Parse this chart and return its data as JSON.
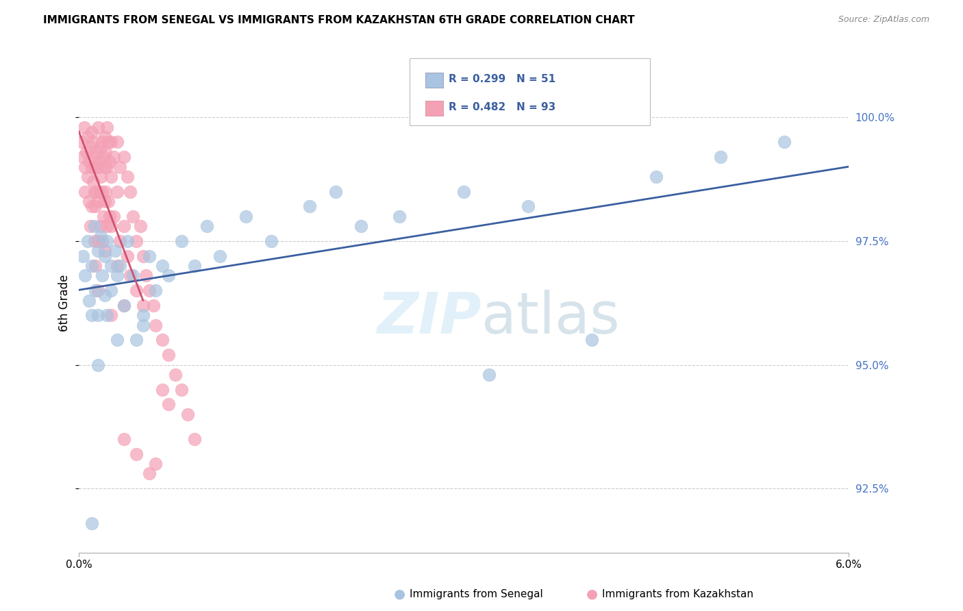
{
  "title": "IMMIGRANTS FROM SENEGAL VS IMMIGRANTS FROM KAZAKHSTAN 6TH GRADE CORRELATION CHART",
  "source": "Source: ZipAtlas.com",
  "ylabel": "6th Grade",
  "y_ticks": [
    92.5,
    95.0,
    97.5,
    100.0
  ],
  "y_tick_labels": [
    "92.5%",
    "95.0%",
    "97.5%",
    "100.0%"
  ],
  "x_range": [
    0.0,
    6.0
  ],
  "y_range": [
    91.2,
    101.3
  ],
  "legend_r1": "R = 0.299",
  "legend_n1": "N = 51",
  "legend_r2": "R = 0.482",
  "legend_n2": "N = 93",
  "color_senegal": "#a8c4e0",
  "color_kazakhstan": "#f4a0b5",
  "color_line_senegal": "#3a5fa0",
  "color_line_kazakhstan": "#d05070",
  "title_fontsize": 11,
  "source_fontsize": 9,
  "tick_fontsize": 11,
  "scatter_senegal": [
    [
      0.03,
      97.2
    ],
    [
      0.05,
      96.8
    ],
    [
      0.07,
      97.5
    ],
    [
      0.08,
      96.3
    ],
    [
      0.1,
      97.0
    ],
    [
      0.1,
      96.0
    ],
    [
      0.12,
      97.8
    ],
    [
      0.13,
      96.5
    ],
    [
      0.15,
      97.3
    ],
    [
      0.15,
      96.0
    ],
    [
      0.17,
      97.6
    ],
    [
      0.18,
      96.8
    ],
    [
      0.2,
      97.2
    ],
    [
      0.2,
      96.4
    ],
    [
      0.22,
      97.5
    ],
    [
      0.22,
      96.0
    ],
    [
      0.25,
      97.0
    ],
    [
      0.25,
      96.5
    ],
    [
      0.28,
      97.3
    ],
    [
      0.3,
      96.8
    ],
    [
      0.32,
      97.0
    ],
    [
      0.35,
      96.2
    ],
    [
      0.38,
      97.5
    ],
    [
      0.42,
      96.8
    ],
    [
      0.45,
      95.5
    ],
    [
      0.5,
      96.0
    ],
    [
      0.55,
      97.2
    ],
    [
      0.6,
      96.5
    ],
    [
      0.65,
      97.0
    ],
    [
      0.7,
      96.8
    ],
    [
      0.8,
      97.5
    ],
    [
      0.9,
      97.0
    ],
    [
      1.0,
      97.8
    ],
    [
      1.1,
      97.2
    ],
    [
      1.3,
      98.0
    ],
    [
      1.5,
      97.5
    ],
    [
      1.8,
      98.2
    ],
    [
      2.0,
      98.5
    ],
    [
      2.2,
      97.8
    ],
    [
      2.5,
      98.0
    ],
    [
      3.0,
      98.5
    ],
    [
      3.2,
      94.8
    ],
    [
      3.5,
      98.2
    ],
    [
      4.0,
      95.5
    ],
    [
      4.5,
      98.8
    ],
    [
      5.0,
      99.2
    ],
    [
      5.5,
      99.5
    ],
    [
      0.15,
      95.0
    ],
    [
      0.3,
      95.5
    ],
    [
      0.5,
      95.8
    ],
    [
      0.1,
      91.8
    ]
  ],
  "scatter_kazakhstan": [
    [
      0.02,
      99.5
    ],
    [
      0.03,
      99.2
    ],
    [
      0.04,
      99.8
    ],
    [
      0.05,
      99.0
    ],
    [
      0.05,
      98.5
    ],
    [
      0.06,
      99.3
    ],
    [
      0.07,
      99.6
    ],
    [
      0.07,
      98.8
    ],
    [
      0.08,
      99.1
    ],
    [
      0.08,
      98.3
    ],
    [
      0.09,
      99.4
    ],
    [
      0.09,
      97.8
    ],
    [
      0.1,
      99.7
    ],
    [
      0.1,
      99.0
    ],
    [
      0.1,
      98.2
    ],
    [
      0.11,
      99.5
    ],
    [
      0.11,
      98.7
    ],
    [
      0.12,
      99.2
    ],
    [
      0.12,
      98.5
    ],
    [
      0.12,
      97.5
    ],
    [
      0.13,
      99.0
    ],
    [
      0.13,
      98.2
    ],
    [
      0.13,
      97.0
    ],
    [
      0.14,
      99.3
    ],
    [
      0.14,
      98.5
    ],
    [
      0.15,
      99.8
    ],
    [
      0.15,
      99.0
    ],
    [
      0.15,
      98.3
    ],
    [
      0.15,
      97.5
    ],
    [
      0.16,
      99.1
    ],
    [
      0.16,
      98.5
    ],
    [
      0.17,
      99.4
    ],
    [
      0.17,
      98.8
    ],
    [
      0.17,
      97.8
    ],
    [
      0.18,
      99.5
    ],
    [
      0.18,
      98.5
    ],
    [
      0.18,
      97.5
    ],
    [
      0.19,
      99.2
    ],
    [
      0.19,
      98.0
    ],
    [
      0.2,
      99.6
    ],
    [
      0.2,
      99.0
    ],
    [
      0.2,
      98.3
    ],
    [
      0.2,
      97.3
    ],
    [
      0.21,
      99.3
    ],
    [
      0.21,
      98.5
    ],
    [
      0.22,
      99.8
    ],
    [
      0.22,
      99.0
    ],
    [
      0.22,
      97.8
    ],
    [
      0.23,
      99.5
    ],
    [
      0.23,
      98.3
    ],
    [
      0.24,
      99.1
    ],
    [
      0.24,
      98.0
    ],
    [
      0.25,
      99.5
    ],
    [
      0.25,
      98.8
    ],
    [
      0.25,
      97.8
    ],
    [
      0.27,
      99.2
    ],
    [
      0.27,
      98.0
    ],
    [
      0.3,
      99.5
    ],
    [
      0.3,
      98.5
    ],
    [
      0.3,
      97.0
    ],
    [
      0.32,
      99.0
    ],
    [
      0.32,
      97.5
    ],
    [
      0.35,
      99.2
    ],
    [
      0.35,
      97.8
    ],
    [
      0.38,
      98.8
    ],
    [
      0.38,
      97.2
    ],
    [
      0.4,
      98.5
    ],
    [
      0.4,
      96.8
    ],
    [
      0.42,
      98.0
    ],
    [
      0.45,
      97.5
    ],
    [
      0.45,
      96.5
    ],
    [
      0.48,
      97.8
    ],
    [
      0.5,
      97.2
    ],
    [
      0.5,
      96.2
    ],
    [
      0.52,
      96.8
    ],
    [
      0.55,
      96.5
    ],
    [
      0.58,
      96.2
    ],
    [
      0.6,
      95.8
    ],
    [
      0.65,
      95.5
    ],
    [
      0.65,
      94.5
    ],
    [
      0.7,
      95.2
    ],
    [
      0.7,
      94.2
    ],
    [
      0.75,
      94.8
    ],
    [
      0.8,
      94.5
    ],
    [
      0.85,
      94.0
    ],
    [
      0.9,
      93.5
    ],
    [
      0.35,
      93.5
    ],
    [
      0.45,
      93.2
    ],
    [
      0.55,
      92.8
    ],
    [
      0.6,
      93.0
    ],
    [
      0.35,
      96.2
    ],
    [
      0.15,
      96.5
    ],
    [
      0.25,
      96.0
    ]
  ]
}
